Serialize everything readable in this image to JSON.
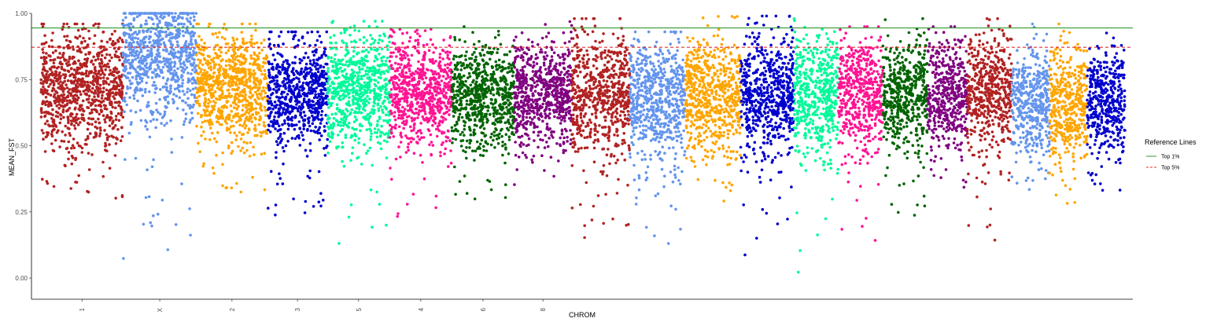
{
  "chart_data": {
    "type": "scatter",
    "title": "",
    "xlabel": "CHROM",
    "ylabel": "MEAN_FST",
    "ylim": [
      -0.08,
      1.0
    ],
    "yticks": [
      0.0,
      0.25,
      0.5,
      0.75,
      1.0
    ],
    "ytick_labels": [
      "0.00",
      "0.25",
      "0.50",
      "0.75",
      "1.00"
    ],
    "x_tick_labels": [
      "1",
      "X",
      "2",
      "3",
      "5",
      "4",
      "6",
      "8"
    ],
    "grid": false,
    "legend": {
      "title": "Reference Lines",
      "placement": "right",
      "entries": [
        {
          "label": "Top 1%",
          "color": "#339933",
          "style": "solid"
        },
        {
          "label": "Top 5%",
          "color": "#e03030",
          "style": "dashed"
        }
      ]
    },
    "reference_lines": [
      {
        "name": "Top 1%",
        "y": 0.945,
        "color": "#339933",
        "style": "solid"
      },
      {
        "name": "Top 5%",
        "y": 0.872,
        "color": "#e03030",
        "style": "dashed"
      }
    ],
    "chromosomes": [
      {
        "label": "1",
        "color": "#B22222",
        "start": 0,
        "end": 1.85,
        "center": 0.72,
        "spread": 0.11,
        "min": 0.3,
        "max": 0.96
      },
      {
        "label": "X",
        "color": "#6495ED",
        "start": 1.85,
        "end": 3.5,
        "center": 0.86,
        "spread": 0.12,
        "min": 0.06,
        "max": 1.0
      },
      {
        "label": "2",
        "color": "#FFA500",
        "start": 3.5,
        "end": 5.1,
        "center": 0.72,
        "spread": 0.1,
        "min": 0.32,
        "max": 0.96
      },
      {
        "label": "3",
        "color": "#0000CD",
        "start": 5.1,
        "end": 6.45,
        "center": 0.7,
        "spread": 0.1,
        "min": 0.21,
        "max": 0.93
      },
      {
        "label": "5",
        "color": "#00FA9A",
        "start": 6.45,
        "end": 7.85,
        "center": 0.71,
        "spread": 0.11,
        "min": 0.13,
        "max": 0.97
      },
      {
        "label": "4",
        "color": "#FF1493",
        "start": 7.85,
        "end": 9.25,
        "center": 0.71,
        "spread": 0.1,
        "min": 0.22,
        "max": 0.94
      },
      {
        "label": "6",
        "color": "#006400",
        "start": 9.25,
        "end": 10.65,
        "center": 0.69,
        "spread": 0.1,
        "min": 0.29,
        "max": 0.95
      },
      {
        "label": "8",
        "color": "#800080",
        "start": 10.65,
        "end": 11.95,
        "center": 0.7,
        "spread": 0.1,
        "min": 0.35,
        "max": 0.98
      },
      {
        "label": "",
        "color": "#B22222",
        "start": 11.95,
        "end": 13.25,
        "center": 0.69,
        "spread": 0.11,
        "min": 0.12,
        "max": 0.98
      },
      {
        "label": "",
        "color": "#6495ED",
        "start": 13.25,
        "end": 14.5,
        "center": 0.68,
        "spread": 0.11,
        "min": 0.09,
        "max": 0.93
      },
      {
        "label": "",
        "color": "#FFA500",
        "start": 14.5,
        "end": 15.75,
        "center": 0.69,
        "spread": 0.11,
        "min": 0.25,
        "max": 0.99
      },
      {
        "label": "",
        "color": "#0000CD",
        "start": 15.75,
        "end": 16.95,
        "center": 0.69,
        "spread": 0.11,
        "min": 0.07,
        "max": 0.99
      },
      {
        "label": "",
        "color": "#00FA9A",
        "start": 16.95,
        "end": 17.95,
        "center": 0.7,
        "spread": 0.11,
        "min": 0.01,
        "max": 0.98
      },
      {
        "label": "",
        "color": "#FF1493",
        "start": 17.95,
        "end": 18.95,
        "center": 0.7,
        "spread": 0.11,
        "min": 0.1,
        "max": 0.95
      },
      {
        "label": "",
        "color": "#006400",
        "start": 18.95,
        "end": 19.95,
        "center": 0.7,
        "spread": 0.1,
        "min": 0.19,
        "max": 0.98
      },
      {
        "label": "",
        "color": "#800080",
        "start": 19.95,
        "end": 20.85,
        "center": 0.7,
        "spread": 0.1,
        "min": 0.29,
        "max": 0.95
      },
      {
        "label": "",
        "color": "#B22222",
        "start": 20.85,
        "end": 21.85,
        "center": 0.71,
        "spread": 0.11,
        "min": 0.14,
        "max": 0.98
      },
      {
        "label": "",
        "color": "#6495ED",
        "start": 21.85,
        "end": 22.7,
        "center": 0.66,
        "spread": 0.1,
        "min": 0.33,
        "max": 0.96
      },
      {
        "label": "",
        "color": "#FFA500",
        "start": 22.7,
        "end": 23.55,
        "center": 0.66,
        "spread": 0.11,
        "min": 0.28,
        "max": 0.96
      },
      {
        "label": "",
        "color": "#0000CD",
        "start": 23.55,
        "end": 24.4,
        "center": 0.68,
        "spread": 0.1,
        "min": 0.27,
        "max": 0.96
      }
    ],
    "x_tick_positions": [
      0.925,
      2.675,
      4.3,
      5.775,
      7.15,
      8.55,
      9.95,
      11.3
    ]
  }
}
